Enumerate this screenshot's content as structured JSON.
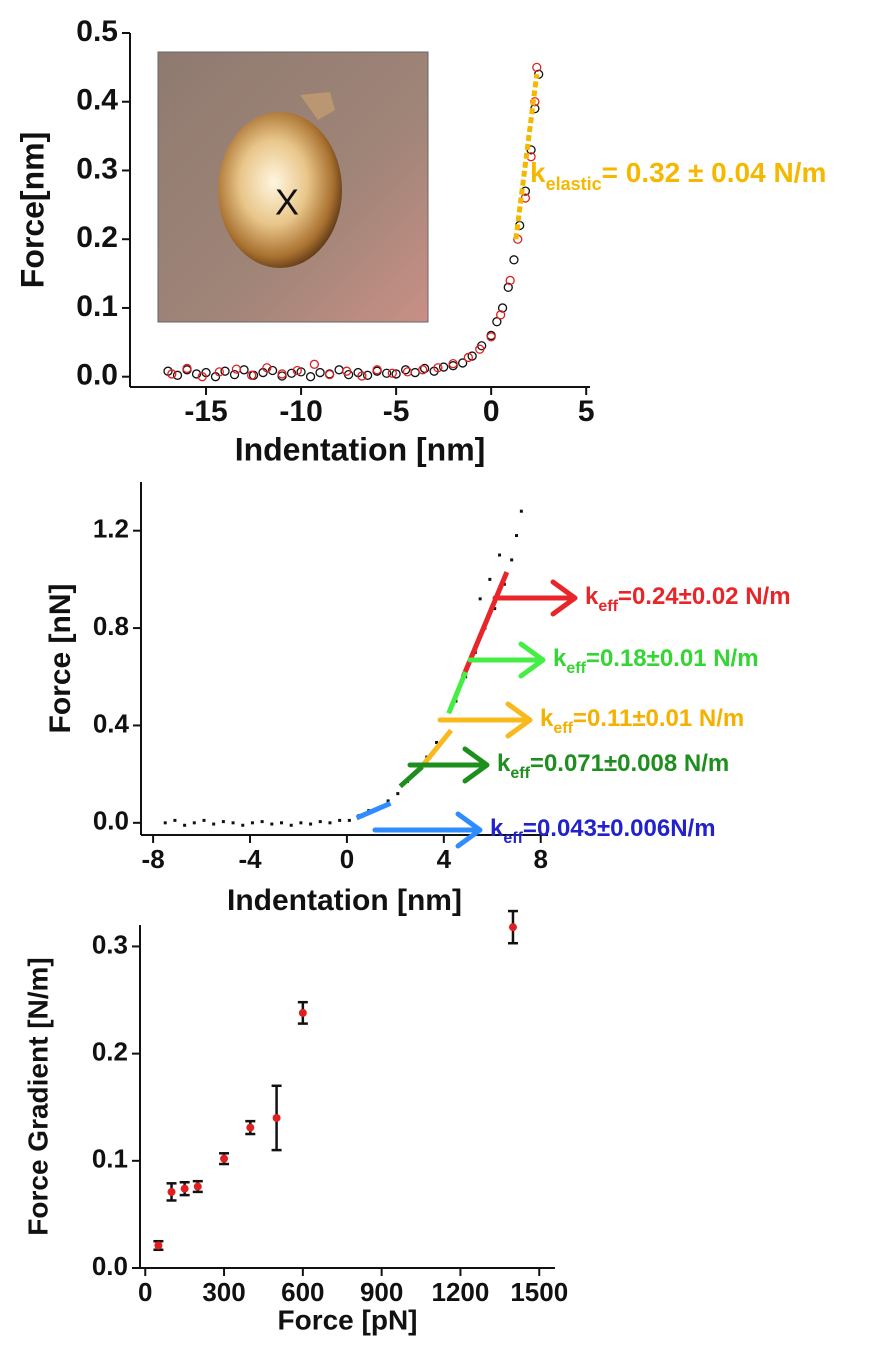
{
  "chart_data": [
    {
      "type": "scatter",
      "marker": "circle-open",
      "x_label": "Indentation [nm]",
      "y_label": "Force[nm]",
      "xlim": [
        -19,
        5.2
      ],
      "ylim": [
        -0.015,
        0.5
      ],
      "xticks": [
        -15,
        -10,
        -5,
        0,
        5
      ],
      "yticks": [
        {
          "value": 0,
          "label": "0.0"
        },
        0.1,
        0.2,
        0.3,
        0.4,
        0.5
      ],
      "inset_label": "X",
      "series": [
        {
          "color": "#111111",
          "x": [
            -17,
            -16.5,
            -16,
            -15.5,
            -15,
            -14.5,
            -14,
            -13.5,
            -13,
            -12.5,
            -12,
            -11.5,
            -11,
            -10.5,
            -10,
            -9.5,
            -9,
            -8.5,
            -8,
            -7.5,
            -7,
            -6.5,
            -6,
            -5.5,
            -5,
            -4.5,
            -4,
            -3.5,
            -3,
            -2.5,
            -2,
            -1.5,
            -1,
            -0.5,
            0,
            0.3,
            0.6,
            0.9,
            1.2,
            1.5,
            1.8,
            2.1,
            2.3,
            2.5
          ],
          "values": [
            0.008,
            0.002,
            0.01,
            0.004,
            0.006,
            0,
            0.008,
            0.003,
            0.01,
            0.002,
            0.006,
            0.009,
            0.001,
            0.005,
            0.007,
            0,
            0.006,
            0.004,
            0.01,
            0.003,
            0.006,
            0.002,
            0.008,
            0.005,
            0.004,
            0.01,
            0.006,
            0.012,
            0.008,
            0.014,
            0.016,
            0.02,
            0.03,
            0.045,
            0.06,
            0.08,
            0.1,
            0.13,
            0.17,
            0.22,
            0.27,
            0.33,
            0.39,
            0.44
          ]
        },
        {
          "color": "#e02020",
          "x": [
            -16.8,
            -16,
            -15.2,
            -14.3,
            -13.4,
            -12.6,
            -11.8,
            -11,
            -10.2,
            -9.3,
            -8.5,
            -7.6,
            -6.8,
            -6,
            -5.2,
            -4.4,
            -3.6,
            -2.8,
            -2,
            -1.2,
            -0.6,
            0,
            0.5,
            1,
            1.4,
            1.8,
            2.1,
            2.3,
            2.4
          ],
          "values": [
            0.004,
            0.012,
            0,
            0.007,
            0.011,
            0.002,
            0.013,
            0.004,
            0.009,
            0.018,
            0.003,
            0.008,
            0.001,
            0.01,
            0.005,
            0.007,
            0.01,
            0.013,
            0.019,
            0.028,
            0.04,
            0.058,
            0.09,
            0.14,
            0.2,
            0.26,
            0.32,
            0.4,
            0.45
          ]
        }
      ],
      "fits": [
        {
          "color": "#f5b800",
          "x": [
            1.3,
            2.4
          ],
          "values": [
            0.2,
            0.44
          ],
          "label": {
            "text": "k",
            "subscript": "elastic",
            "suffix": "= 0.32 ± 0.04 N/m"
          }
        }
      ]
    },
    {
      "type": "scatter",
      "marker": "square",
      "x_label": "Indentation [nm]",
      "y_label": "Force [nN]",
      "xlim": [
        -8.5,
        8.3
      ],
      "ylim": [
        -0.05,
        1.4
      ],
      "xticks": [
        -8,
        -4,
        0,
        4,
        8
      ],
      "yticks": [
        {
          "value": 0,
          "label": "0.0"
        },
        0.4,
        0.8,
        1.2
      ],
      "series": [
        {
          "color": "#111111",
          "x": [
            -7.5,
            -7.1,
            -6.7,
            -6.3,
            -5.9,
            -5.5,
            -5.1,
            -4.7,
            -4.3,
            -3.9,
            -3.5,
            -3.1,
            -2.7,
            -2.3,
            -1.9,
            -1.5,
            -1.1,
            -0.7,
            -0.3,
            0.1,
            0.5,
            0.9,
            1.3,
            1.7,
            2.1,
            2.5,
            2.9,
            3.3,
            3.7,
            4.1,
            4.5,
            4.9,
            5.3,
            5.7,
            6.1,
            6.5,
            6.8,
            7.0,
            7.2,
            6.3,
            5.9,
            5.5
          ],
          "values": [
            0,
            0.01,
            -0.01,
            0,
            0.01,
            -0.005,
            0.005,
            0,
            -0.01,
            0,
            0.005,
            -0.005,
            0,
            -0.01,
            0,
            -0.005,
            0.005,
            0,
            0.01,
            0.01,
            0.03,
            0.05,
            0.06,
            0.09,
            0.12,
            0.17,
            0.21,
            0.27,
            0.33,
            0.42,
            0.5,
            0.6,
            0.7,
            0.8,
            0.88,
            0.98,
            1.08,
            1.18,
            1.28,
            1.1,
            1.0,
            0.92
          ]
        }
      ],
      "fits": [
        {
          "color": "#e8262a",
          "label_color": "#e8262a",
          "x": [
            4.8,
            6.6
          ],
          "values": [
            0.6,
            1.03
          ],
          "label": {
            "text": "k",
            "subscript": "eff",
            "suffix": "=0.24±0.02 N/m"
          }
        },
        {
          "color": "#44ee44",
          "label_color": "#33d633",
          "x": [
            4.2,
            4.9
          ],
          "values": [
            0.45,
            0.62
          ],
          "label": {
            "text": "k",
            "subscript": "eff",
            "suffix": "=0.18±0.01 N/m"
          }
        },
        {
          "color": "#f9b81b",
          "label_color": "#f5b000",
          "x": [
            3.0,
            4.3
          ],
          "values": [
            0.22,
            0.38
          ],
          "label": {
            "text": "k",
            "subscript": "eff",
            "suffix": "=0.11±0.01 N/m"
          }
        },
        {
          "color": "#1e8f1e",
          "label_color": "#1e8f1e",
          "x": [
            2.2,
            3.1
          ],
          "values": [
            0.15,
            0.23
          ],
          "label": {
            "text": "k",
            "subscript": "eff",
            "suffix": "=0.071±0.008 N/m"
          }
        },
        {
          "color": "#2f8cff",
          "label_color": "#2222cc",
          "x": [
            0.4,
            1.8
          ],
          "values": [
            0.02,
            0.08
          ],
          "label": {
            "text": "k",
            "subscript": "eff",
            "suffix": "=0.043±0.006N/m"
          }
        }
      ]
    },
    {
      "type": "scatter",
      "marker": "circle",
      "x_label": "Force [pN]",
      "y_label": "Force Gradient [N/m]",
      "xlim": [
        -20,
        1560
      ],
      "ylim": [
        0,
        0.32
      ],
      "xticks": [
        0,
        300,
        600,
        900,
        1200,
        1500
      ],
      "yticks": [
        {
          "value": 0,
          "label": "0.0"
        },
        0.1,
        0.2,
        0.3
      ],
      "series": [
        {
          "color": "#e02020",
          "error_color": "#111111",
          "x": [
            50,
            100,
            150,
            200,
            300,
            400,
            500,
            600,
            1400
          ],
          "values": [
            0.021,
            0.071,
            0.074,
            0.076,
            0.102,
            0.131,
            0.14,
            0.238,
            0.318
          ],
          "errors": [
            0.004,
            0.008,
            0.006,
            0.005,
            0.005,
            0.006,
            0.03,
            0.01,
            0.015
          ]
        }
      ]
    }
  ]
}
